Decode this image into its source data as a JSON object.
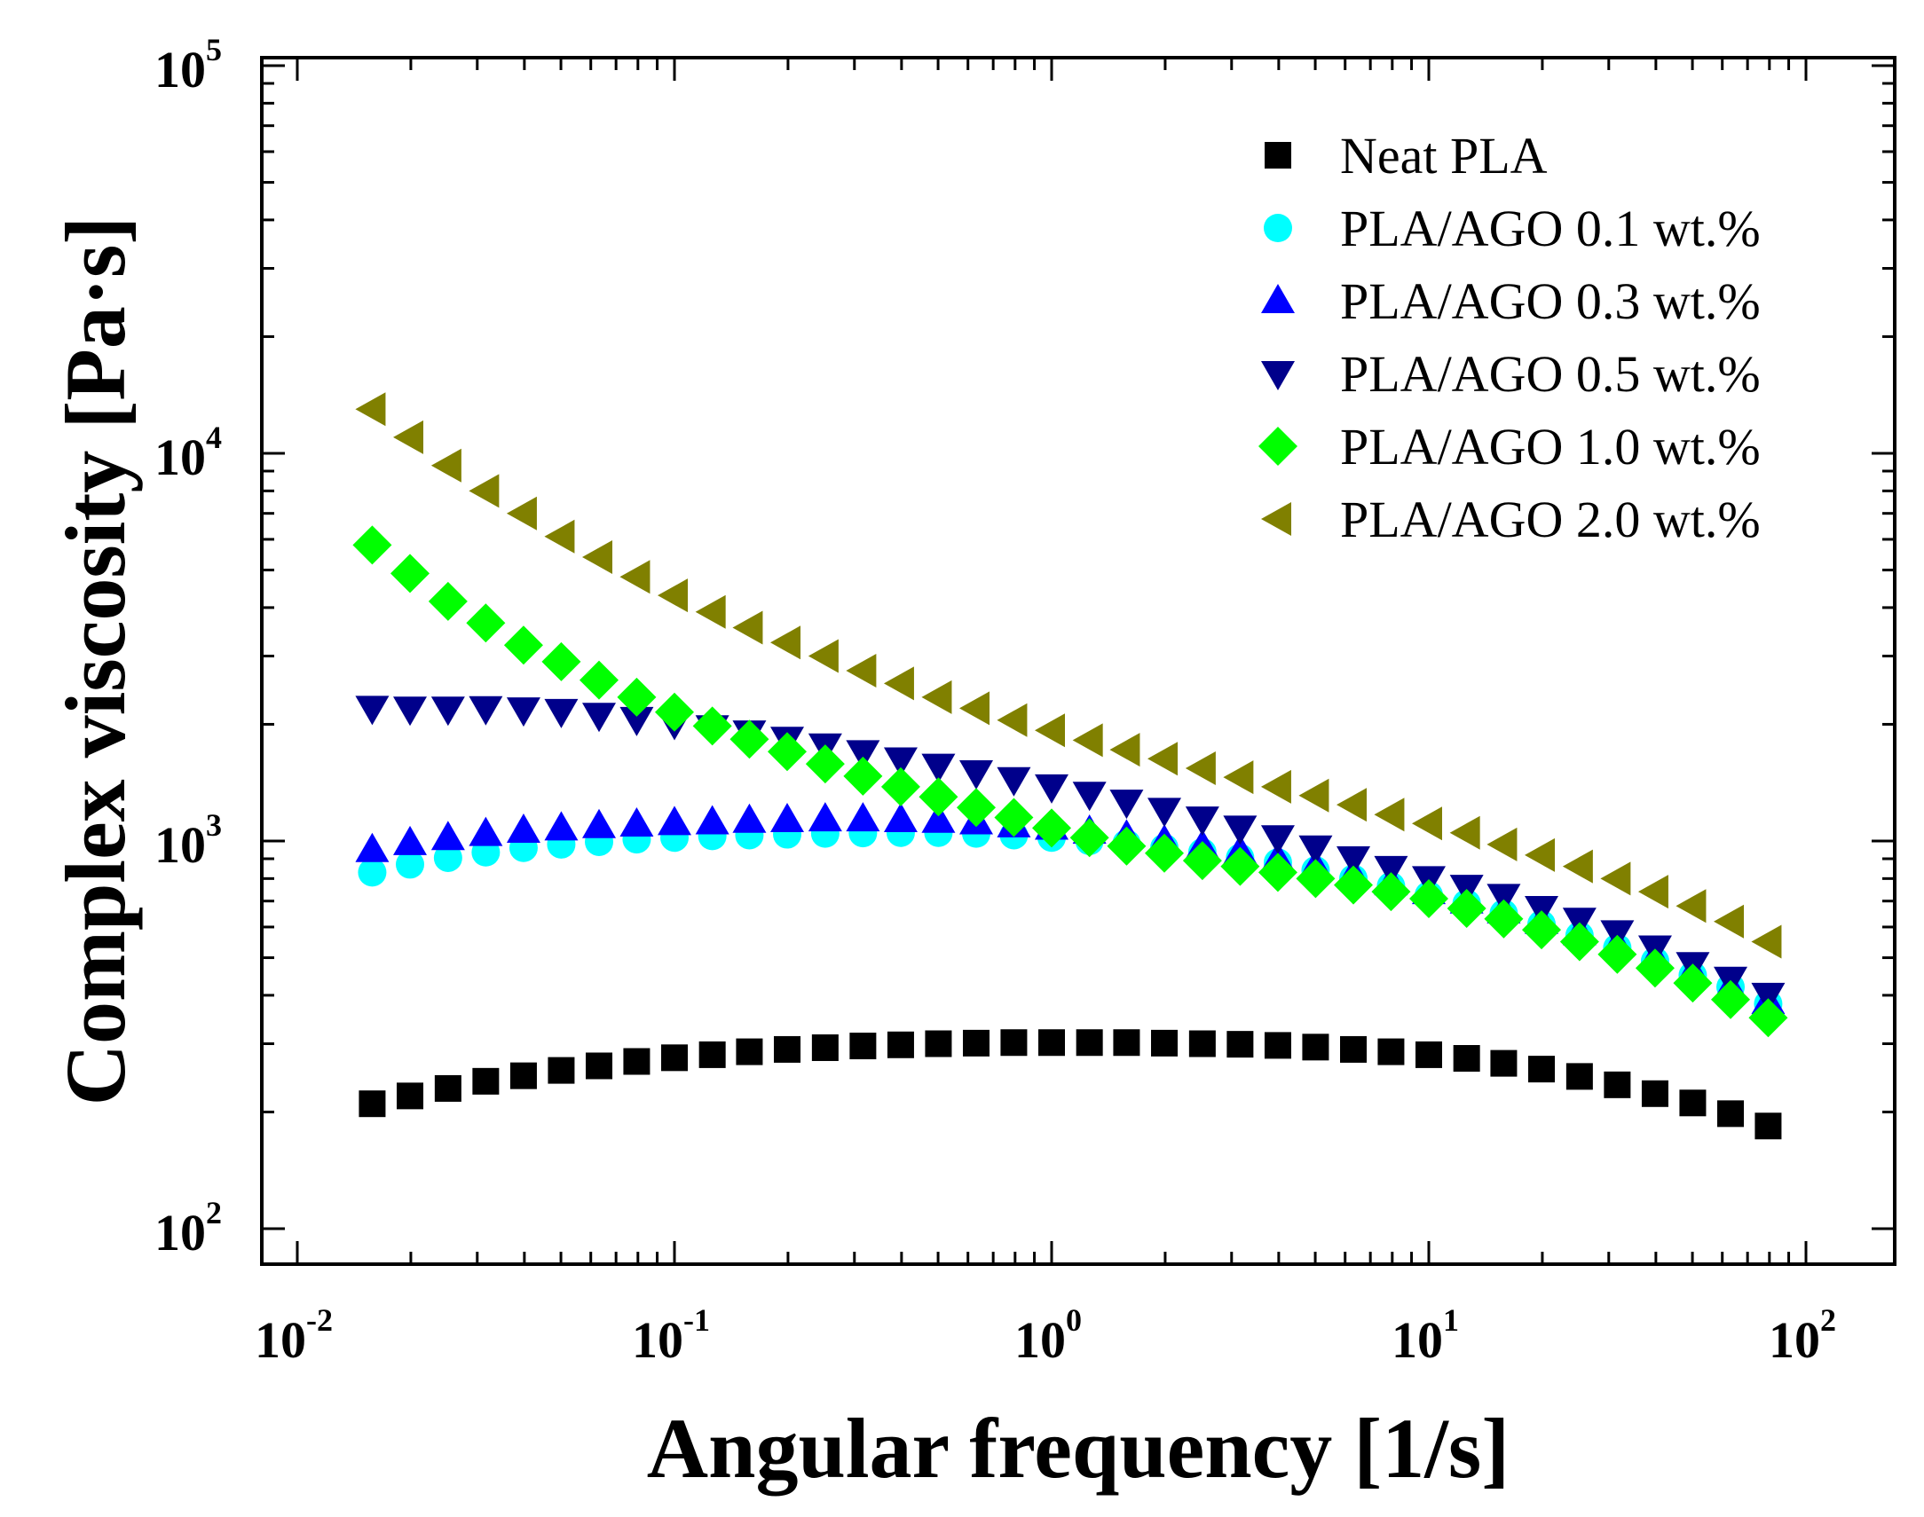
{
  "chart_data": {
    "type": "scatter",
    "xlabel": "Angular frequency [1/s]",
    "ylabel": "Complex viscosity [Pa·s]",
    "x_scale": "log",
    "y_scale": "log",
    "xlim": [
      0.01,
      100
    ],
    "ylim": [
      100,
      100000
    ],
    "x_ticks": [
      {
        "base": "10",
        "exp": "-2",
        "value": 0.01
      },
      {
        "base": "10",
        "exp": "-1",
        "value": 0.1
      },
      {
        "base": "10",
        "exp": "0",
        "value": 1
      },
      {
        "base": "10",
        "exp": "1",
        "value": 10
      },
      {
        "base": "10",
        "exp": "2",
        "value": 100
      }
    ],
    "y_ticks": [
      {
        "base": "10",
        "exp": "2",
        "value": 100
      },
      {
        "base": "10",
        "exp": "3",
        "value": 1000
      },
      {
        "base": "10",
        "exp": "4",
        "value": 10000
      },
      {
        "base": "10",
        "exp": "5",
        "value": 100000
      }
    ],
    "grid": false,
    "legend_position": "top-right",
    "x": [
      0.0158,
      0.0199,
      0.0251,
      0.0316,
      0.0398,
      0.0501,
      0.0631,
      0.0794,
      0.1,
      0.126,
      0.158,
      0.199,
      0.251,
      0.316,
      0.398,
      0.501,
      0.631,
      0.794,
      1.0,
      1.26,
      1.58,
      1.99,
      2.51,
      3.16,
      3.98,
      5.01,
      6.31,
      7.94,
      10.0,
      12.6,
      15.8,
      19.9,
      25.1,
      31.6,
      39.8,
      50.1,
      63.1,
      79.4
    ],
    "series": [
      {
        "name": "Neat PLA",
        "marker": "square",
        "color": "#000000",
        "values": [
          210,
          220,
          230,
          240,
          248,
          256,
          263,
          270,
          276,
          281,
          286,
          290,
          293,
          296,
          298,
          300,
          301,
          302,
          302,
          302,
          302,
          301,
          300,
          299,
          297,
          294,
          290,
          286,
          281,
          275,
          267,
          258,
          247,
          235,
          223,
          211,
          198,
          184
        ]
      },
      {
        "name": "PLA/AGO 0.1 wt.%",
        "marker": "circle",
        "color": "#00FFFF",
        "values": [
          830,
          870,
          905,
          935,
          960,
          980,
          995,
          1010,
          1020,
          1030,
          1035,
          1040,
          1045,
          1048,
          1050,
          1050,
          1045,
          1035,
          1020,
          1000,
          985,
          960,
          935,
          905,
          880,
          840,
          800,
          765,
          725,
          690,
          650,
          610,
          570,
          530,
          490,
          450,
          420,
          380
        ]
      },
      {
        "name": "PLA/AGO 0.3 wt.%",
        "marker": "triangle-up",
        "color": "#0000FF",
        "values": [
          950,
          990,
          1020,
          1045,
          1065,
          1080,
          1095,
          1105,
          1115,
          1120,
          1130,
          1135,
          1140,
          1140,
          1135,
          1130,
          1120,
          1100,
          1085,
          1060,
          1030,
          1000,
          970,
          940,
          900,
          860,
          820,
          780,
          740,
          700,
          660,
          620,
          580,
          540,
          500,
          460,
          420,
          385
        ]
      },
      {
        "name": "PLA/AGO 0.5 wt.%",
        "marker": "triangle-down",
        "color": "#00008B",
        "values": [
          2200,
          2190,
          2190,
          2195,
          2180,
          2160,
          2110,
          2060,
          2010,
          1960,
          1900,
          1830,
          1760,
          1690,
          1620,
          1560,
          1500,
          1440,
          1380,
          1320,
          1260,
          1200,
          1140,
          1080,
          1020,
          960,
          900,
          850,
          800,
          760,
          720,
          670,
          625,
          580,
          530,
          480,
          440,
          400
        ]
      },
      {
        "name": "PLA/AGO 1.0 wt.%",
        "marker": "diamond",
        "color": "#00FF00",
        "values": [
          5800,
          4900,
          4150,
          3650,
          3200,
          2900,
          2600,
          2350,
          2150,
          1980,
          1830,
          1700,
          1580,
          1470,
          1380,
          1300,
          1220,
          1150,
          1080,
          1020,
          970,
          930,
          890,
          860,
          830,
          800,
          770,
          740,
          710,
          670,
          630,
          590,
          550,
          510,
          470,
          430,
          390,
          350
        ]
      },
      {
        "name": "PLA/AGO 2.0 wt.%",
        "marker": "triangle-left",
        "color": "#808000",
        "values": [
          13000,
          11000,
          9300,
          8000,
          7000,
          6100,
          5400,
          4800,
          4300,
          3900,
          3550,
          3250,
          3000,
          2750,
          2550,
          2350,
          2200,
          2050,
          1930,
          1820,
          1720,
          1630,
          1540,
          1460,
          1380,
          1310,
          1240,
          1170,
          1110,
          1050,
          980,
          920,
          860,
          800,
          740,
          680,
          620,
          550
        ]
      }
    ]
  }
}
